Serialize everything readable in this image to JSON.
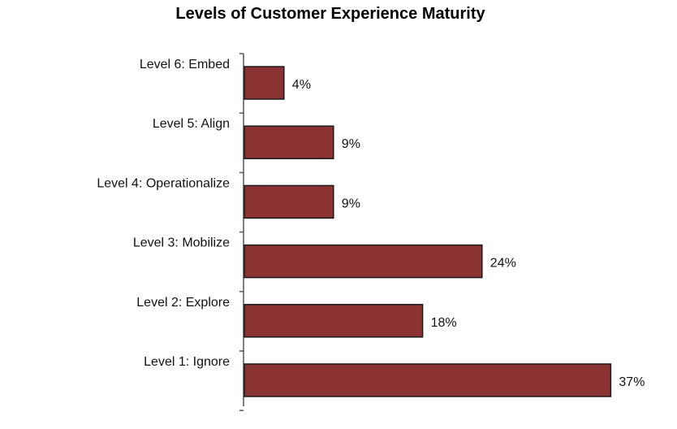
{
  "chart_data": {
    "type": "bar",
    "orientation": "horizontal",
    "title": "Levels of Customer Experience Maturity",
    "categories": [
      "Level 6: Embed",
      "Level 5: Align",
      "Level 4: Operationalize",
      "Level 3: Mobilize",
      "Level 2: Explore",
      "Level 1: Ignore"
    ],
    "values": [
      4,
      9,
      9,
      24,
      18,
      37
    ],
    "value_labels": [
      "4%",
      "9%",
      "9%",
      "24%",
      "18%",
      "37%"
    ],
    "unit": "%",
    "bar_color": "#8b3232",
    "bar_border_color": "#1a1a1a",
    "xlabel": "",
    "ylabel": "",
    "grid": false,
    "legend": "none"
  }
}
